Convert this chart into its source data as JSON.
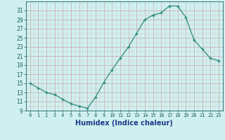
{
  "x": [
    0,
    1,
    2,
    3,
    4,
    5,
    6,
    7,
    8,
    9,
    10,
    11,
    12,
    13,
    14,
    15,
    16,
    17,
    18,
    19,
    20,
    21,
    22,
    23
  ],
  "y": [
    15,
    14,
    13,
    12.5,
    11.5,
    10.5,
    10,
    9.5,
    12,
    15.2,
    18,
    20.5,
    23,
    26,
    29,
    30,
    30.5,
    32,
    32,
    29.5,
    24.5,
    22.5,
    20.5,
    20
  ],
  "line_color": "#2e8b7a",
  "marker_color": "#2e8b7a",
  "bg_color": "#d0f0f0",
  "grid_color": "#c0e0e0",
  "grid_minor_color": "#d8ecec",
  "xlabel": "Humidex (Indice chaleur)",
  "ylim": [
    9,
    33
  ],
  "xlim": [
    -0.5,
    23.5
  ],
  "yticks": [
    9,
    11,
    13,
    15,
    17,
    19,
    21,
    23,
    25,
    27,
    29,
    31
  ],
  "xticks": [
    0,
    1,
    2,
    3,
    4,
    5,
    6,
    7,
    8,
    9,
    10,
    11,
    12,
    13,
    14,
    15,
    16,
    17,
    18,
    19,
    20,
    21,
    22,
    23
  ],
  "tick_color": "#1a5f5f",
  "xlabel_color": "#1a3a8a"
}
